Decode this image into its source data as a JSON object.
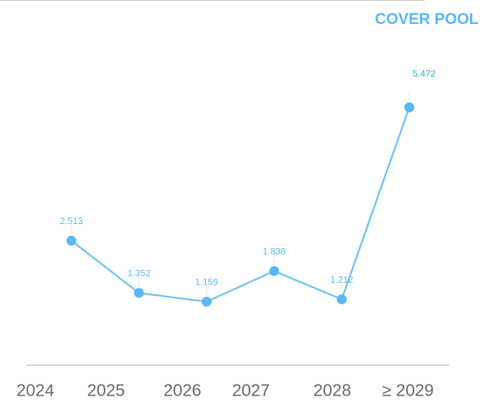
{
  "chart_data": {
    "type": "line",
    "title": "COVER POOL",
    "categories": [
      "2024",
      "2025",
      "2026",
      "2027",
      "2028",
      "≥ 2029"
    ],
    "series": [
      {
        "name": "Cover pool",
        "color": "#5bb8f5",
        "values": [
          2.513,
          1.352,
          1.159,
          1.838,
          1.212,
          5.472
        ]
      }
    ]
  }
}
